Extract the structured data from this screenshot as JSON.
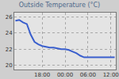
{
  "chart_data": {
    "type": "line",
    "title": "Outside Temperature (°C)",
    "categories": [
      null,
      null,
      null,
      null,
      null,
      null,
      null,
      "18:00",
      null,
      null,
      null,
      null,
      null,
      "00:00",
      null,
      null,
      null,
      null,
      null,
      "06:00",
      null,
      null,
      null,
      null,
      null,
      "12:00",
      null
    ],
    "values": [
      25.5,
      25.6,
      25.3,
      25.1,
      23.8,
      22.9,
      22.6,
      22.4,
      22.3,
      22.2,
      22.2,
      22.1,
      22.0,
      22.0,
      21.9,
      21.7,
      21.5,
      21.2,
      21.0,
      21.0,
      21.0,
      21.0,
      21.0,
      21.0,
      21.0,
      21.0,
      21.0
    ],
    "color": "#3a5fcd",
    "ylim": [
      19.5,
      26.5
    ],
    "yticks": [
      20,
      22,
      24,
      26
    ],
    "grid": true
  }
}
